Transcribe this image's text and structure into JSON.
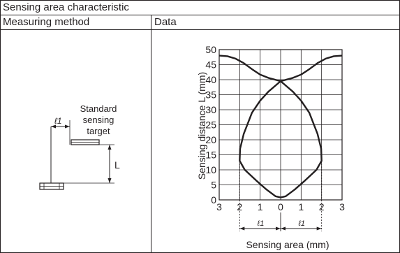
{
  "table": {
    "title": "Sensing area characteristic",
    "col_method": "Measuring method",
    "col_data": "Data"
  },
  "method_diagram": {
    "target_label_lines": [
      "Standard",
      "sensing",
      "target"
    ],
    "l1_label": "ℓ1",
    "distance_label": "L"
  },
  "chart_data": {
    "type": "line",
    "ylabel": "Sensing distance L (mm)",
    "xlabel": "Sensing area (mm)",
    "xlim": [
      -3,
      3
    ],
    "ylim": [
      0,
      50
    ],
    "x_ticks": [
      -3,
      -2,
      -1,
      0,
      1,
      2,
      3
    ],
    "x_tick_labels": [
      "3",
      "2",
      "1",
      "0",
      "1",
      "2",
      "3"
    ],
    "y_ticks": [
      0,
      5,
      10,
      15,
      20,
      25,
      30,
      35,
      40,
      45,
      50
    ],
    "y_tick_labels": [
      "0",
      "5",
      "10",
      "15",
      "20",
      "25",
      "30",
      "35",
      "40",
      "45",
      "50"
    ],
    "grid": true,
    "series": [
      {
        "points": [
          [
            -3,
            48
          ],
          [
            -2.6,
            47.8
          ],
          [
            -2.2,
            47
          ],
          [
            -1.8,
            45.5
          ],
          [
            -1.4,
            43.5
          ],
          [
            -1.0,
            41.7
          ],
          [
            -0.6,
            40.6
          ],
          [
            0,
            39.5
          ],
          [
            0.6,
            36
          ],
          [
            1.0,
            33
          ],
          [
            1.4,
            29
          ],
          [
            1.8,
            22
          ],
          [
            1.98,
            17
          ],
          [
            2.0,
            13
          ],
          [
            1.75,
            10
          ],
          [
            1.2,
            6.5
          ],
          [
            0.7,
            3.5
          ],
          [
            0.25,
            1.2
          ],
          [
            0,
            0.8
          ]
        ]
      },
      {
        "points": [
          [
            3,
            48
          ],
          [
            2.6,
            47.8
          ],
          [
            2.2,
            47
          ],
          [
            1.8,
            45.5
          ],
          [
            1.4,
            43.5
          ],
          [
            1.0,
            41.7
          ],
          [
            0.6,
            40.6
          ],
          [
            0,
            39.5
          ],
          [
            -0.6,
            36
          ],
          [
            -1.0,
            33
          ],
          [
            -1.4,
            29
          ],
          [
            -1.8,
            22
          ],
          [
            -1.98,
            17
          ],
          [
            -2.0,
            13
          ],
          [
            -1.75,
            10
          ],
          [
            -1.2,
            6.5
          ],
          [
            -0.7,
            3.5
          ],
          [
            -0.25,
            1.2
          ],
          [
            0,
            0.8
          ]
        ]
      }
    ],
    "annotations": {
      "l1_label": "ℓ1",
      "dotted_guides_x": [
        -2,
        2
      ],
      "l1_spans": [
        [
          -2,
          0
        ],
        [
          0,
          2
        ]
      ]
    }
  }
}
